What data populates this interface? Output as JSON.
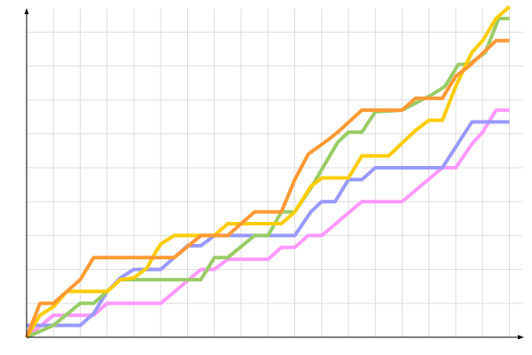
{
  "chart_data": {
    "type": "line",
    "title": "",
    "xlabel": "",
    "ylabel": "",
    "xlim": [
      0,
      18.5
    ],
    "ylim": [
      0,
      9.7
    ],
    "grid": true,
    "legend": "none",
    "grid_color": "#dddddd",
    "axis_color": "#000000",
    "series": [
      {
        "color": "#ff99ff",
        "x": [
          0,
          1,
          2.5,
          3,
          5,
          6.5,
          7,
          7.5,
          9,
          9.5,
          10,
          10.5,
          11,
          12.5,
          14,
          15.5,
          16,
          16.6,
          17,
          17.5,
          18
        ],
        "y": [
          0,
          0.65,
          0.65,
          1,
          1,
          2,
          2,
          2.3,
          2.3,
          2.65,
          2.65,
          3,
          3,
          4,
          4,
          5,
          5,
          5.7,
          6.05,
          6.7,
          6.7
        ]
      },
      {
        "color": "#9999ff",
        "x": [
          0,
          2,
          2.5,
          3,
          3.5,
          4,
          5,
          5.5,
          6,
          6.5,
          7,
          9.5,
          10,
          10.6,
          11,
          11.5,
          12,
          12.5,
          13,
          15.5,
          16.6,
          18
        ],
        "y": [
          0.35,
          0.35,
          0.7,
          1.35,
          1.75,
          2,
          2,
          2.35,
          2.7,
          2.7,
          3,
          3,
          3,
          3.7,
          4,
          4,
          4.65,
          4.65,
          5,
          5,
          6.35,
          6.35
        ]
      },
      {
        "color": "#99cc66",
        "x": [
          0,
          1,
          2,
          2.5,
          3,
          3.5,
          6.5,
          7,
          7.5,
          8.5,
          9,
          9.5,
          10,
          10.6,
          11.6,
          12,
          12.5,
          13,
          14,
          15.1,
          15.6,
          16.1,
          16.5,
          17.1,
          17.6,
          18
        ],
        "y": [
          0,
          0.35,
          1,
          1,
          1.35,
          1.7,
          1.7,
          2.35,
          2.35,
          3,
          3,
          3.7,
          3.7,
          4.4,
          5.75,
          6.05,
          6.05,
          6.65,
          6.7,
          7.15,
          7.4,
          8.05,
          8.05,
          8.4,
          9.4,
          9.4
        ]
      },
      {
        "color": "#ffcc00",
        "x": [
          0,
          0.5,
          1,
          1.5,
          3,
          3.5,
          4,
          4.5,
          4.8,
          5,
          5.5,
          6.5,
          7,
          7.5,
          9.5,
          10,
          10.6,
          11,
          12,
          12.5,
          13.5,
          14.5,
          15,
          15.5,
          16,
          16.6,
          17,
          17.5,
          18
        ],
        "y": [
          0,
          0.65,
          0.9,
          1.35,
          1.35,
          1.7,
          1.75,
          2.05,
          2.5,
          2.75,
          3,
          3,
          3,
          3.35,
          3.35,
          3.7,
          4.45,
          4.7,
          4.7,
          5.35,
          5.35,
          6.1,
          6.4,
          6.4,
          7.4,
          8.4,
          8.75,
          9.4,
          9.75
        ]
      },
      {
        "color": "#ff9933",
        "x": [
          0,
          0.5,
          1,
          2,
          2.5,
          5.5,
          6.5,
          7.5,
          8.5,
          9.5,
          10,
          10.5,
          11.2,
          11.6,
          12.5,
          14,
          14.5,
          15.5,
          16,
          16.5,
          17.5,
          18
        ],
        "y": [
          0,
          1,
          1,
          1.7,
          2.35,
          2.35,
          3,
          3,
          3.7,
          3.7,
          4.65,
          5.4,
          5.8,
          6.05,
          6.7,
          6.7,
          7.05,
          7.05,
          7.7,
          8,
          8.75,
          8.75
        ]
      }
    ]
  }
}
